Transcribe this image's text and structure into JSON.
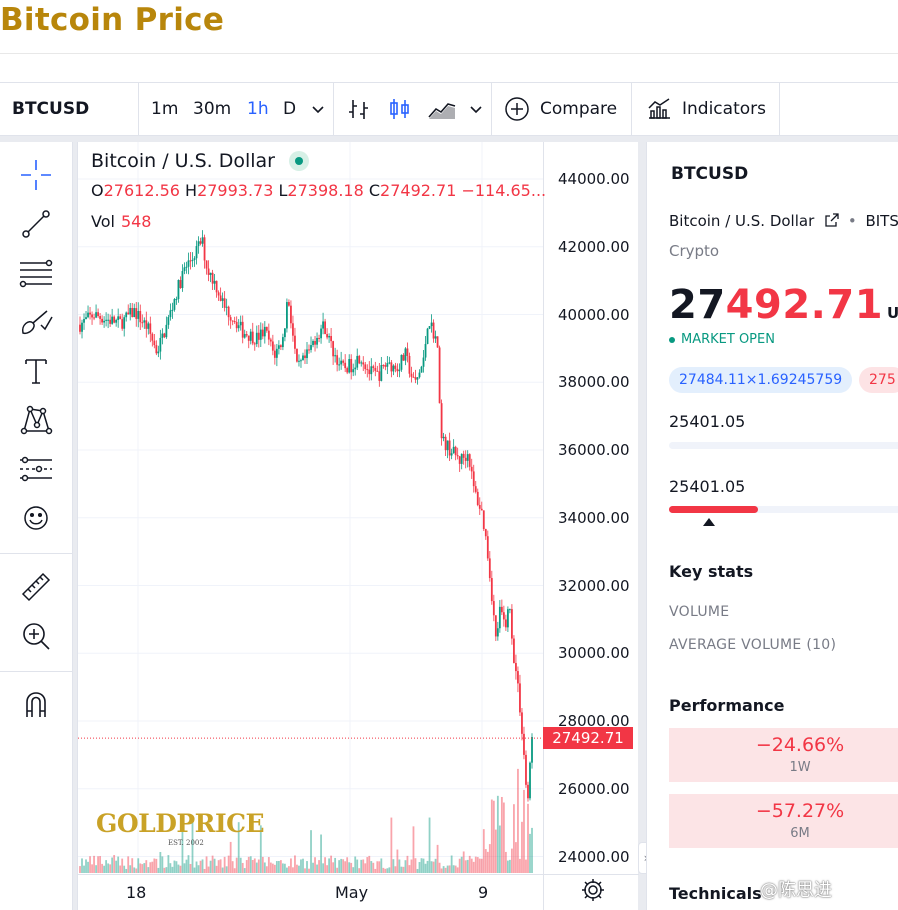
{
  "page": {
    "title": "Bitcoin Price"
  },
  "toolbar": {
    "symbol": "BTCUSD",
    "intervals": [
      "1m",
      "30m",
      "1h",
      "D"
    ],
    "active_interval": "1h",
    "compare_label": "Compare",
    "indicators_label": "Indicators"
  },
  "left_tools": [
    "crosshair-icon",
    "trend-line-icon",
    "fib-retracement-icon",
    "brush-icon",
    "text-icon",
    "pattern-icon",
    "forecast-icon",
    "emoji-icon",
    "ruler-icon",
    "zoom-in-icon",
    "magnet-icon"
  ],
  "chart": {
    "legend_title": "Bitcoin / U.S. Dollar",
    "ohlc": {
      "o": "27612.56",
      "h": "27993.73",
      "l": "27398.18",
      "c": "27492.71",
      "change": "−114.65..."
    },
    "volume_label": "Vol",
    "volume_value": "548",
    "last_price_tag": "27492.71",
    "x_labels": [
      "18",
      "May",
      "9"
    ],
    "watermark": "GOLDPRICE",
    "watermark_est": "EST. 2002"
  },
  "chart_data": {
    "type": "candlestick",
    "title": "Bitcoin / U.S. Dollar",
    "y_ticks": [
      "44000.00",
      "42000.00",
      "40000.00",
      "38000.00",
      "36000.00",
      "34000.00",
      "32000.00",
      "30000.00",
      "28000.00",
      "26000.00",
      "24000.00"
    ],
    "ylim": [
      24000,
      44000
    ],
    "x_tick_labels": [
      "18",
      "May",
      "9"
    ],
    "last_price": 27492.71,
    "close_path": [
      [
        0,
        39700
      ],
      [
        0.03,
        40000
      ],
      [
        0.06,
        39850
      ],
      [
        0.09,
        39750
      ],
      [
        0.12,
        40100
      ],
      [
        0.15,
        39600
      ],
      [
        0.17,
        38900
      ],
      [
        0.19,
        39600
      ],
      [
        0.21,
        40500
      ],
      [
        0.23,
        41300
      ],
      [
        0.25,
        41700
      ],
      [
        0.27,
        42200
      ],
      [
        0.28,
        41400
      ],
      [
        0.3,
        40900
      ],
      [
        0.32,
        40200
      ],
      [
        0.34,
        39900
      ],
      [
        0.36,
        39500
      ],
      [
        0.39,
        39300
      ],
      [
        0.41,
        39500
      ],
      [
        0.43,
        38800
      ],
      [
        0.45,
        39300
      ],
      [
        0.46,
        40600
      ],
      [
        0.48,
        38400
      ],
      [
        0.5,
        38700
      ],
      [
        0.52,
        39300
      ],
      [
        0.54,
        39700
      ],
      [
        0.56,
        38900
      ],
      [
        0.58,
        38400
      ],
      [
        0.6,
        38500
      ],
      [
        0.62,
        38800
      ],
      [
        0.64,
        38300
      ],
      [
        0.66,
        38200
      ],
      [
        0.68,
        38600
      ],
      [
        0.7,
        38400
      ],
      [
        0.72,
        38800
      ],
      [
        0.74,
        37900
      ],
      [
        0.76,
        38600
      ],
      [
        0.77,
        39900
      ],
      [
        0.79,
        39200
      ],
      [
        0.8,
        36300
      ],
      [
        0.82,
        36000
      ],
      [
        0.84,
        35700
      ],
      [
        0.86,
        35900
      ],
      [
        0.87,
        34900
      ],
      [
        0.88,
        34500
      ],
      [
        0.89,
        34100
      ],
      [
        0.9,
        33200
      ],
      [
        0.91,
        31900
      ],
      [
        0.92,
        30400
      ],
      [
        0.93,
        31300
      ],
      [
        0.94,
        30800
      ],
      [
        0.95,
        31400
      ],
      [
        0.96,
        29900
      ],
      [
        0.97,
        28900
      ],
      [
        0.98,
        27400
      ],
      [
        0.99,
        25500
      ],
      [
        1.0,
        27492.71
      ]
    ]
  },
  "right_panel": {
    "symbol": "BTCUSD",
    "name": "Bitcoin / U.S. Dollar",
    "exchange": "BITST",
    "type": "Crypto",
    "price_prefix": "27",
    "price_highlight": "492.71",
    "currency": "USD",
    "market_status": "MARKET OPEN",
    "bid_pill": "27484.11×1.69245759",
    "ask_pill": "275",
    "day_range_value": "25401.05",
    "range_52w_value": "25401.05",
    "range_52w_fill": 0.37,
    "key_stats_heading": "Key stats",
    "stat_volume": "VOLUME",
    "stat_avg_volume": "AVERAGE VOLUME (10)",
    "performance_heading": "Performance",
    "performance": [
      {
        "value": "−24.66%",
        "period": "1W"
      },
      {
        "value": "−57.27%",
        "period": "6M"
      }
    ],
    "technicals_heading": "Technicals"
  },
  "overlay": {
    "weibo_watermark": "@陈思进"
  },
  "colors": {
    "up": "#089981",
    "down": "#f23645",
    "accent": "#2962ff",
    "title_gold": "#b8860b"
  }
}
